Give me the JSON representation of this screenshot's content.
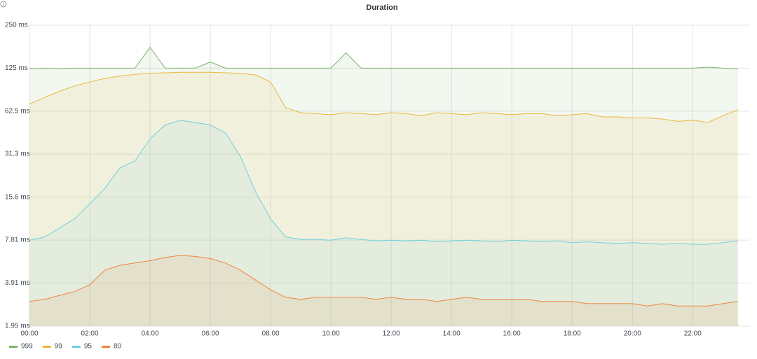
{
  "chart_data": {
    "type": "line",
    "title": "Duration",
    "log_base": 2,
    "grid": true,
    "fill_area": true,
    "legend_position": "bottom",
    "x": [
      0,
      0.5,
      1,
      1.5,
      2,
      2.5,
      3,
      3.5,
      4,
      4.5,
      5,
      5.5,
      6,
      6.5,
      7,
      7.5,
      8,
      8.5,
      9,
      9.5,
      10,
      10.5,
      11,
      11.5,
      12,
      12.5,
      13,
      13.5,
      14,
      14.5,
      15,
      15.5,
      16,
      16.5,
      17,
      17.5,
      18,
      18.5,
      19,
      19.5,
      20,
      20.5,
      21,
      21.5,
      22,
      22.5,
      23,
      23.5
    ],
    "xlim": [
      0,
      23.9
    ],
    "xticks": [
      {
        "value": 0,
        "label": "00:00"
      },
      {
        "value": 2,
        "label": "02:00"
      },
      {
        "value": 4,
        "label": "04:00"
      },
      {
        "value": 6,
        "label": "06:00"
      },
      {
        "value": 8,
        "label": "08:00"
      },
      {
        "value": 10,
        "label": "10:00"
      },
      {
        "value": 12,
        "label": "12:00"
      },
      {
        "value": 14,
        "label": "14:00"
      },
      {
        "value": 16,
        "label": "16:00"
      },
      {
        "value": 18,
        "label": "18:00"
      },
      {
        "value": 20,
        "label": "20:00"
      },
      {
        "value": 22,
        "label": "22:00"
      }
    ],
    "ylim": [
      1.95,
      250
    ],
    "yticks": [
      {
        "value": 1.95,
        "label": "1.95 ms"
      },
      {
        "value": 3.91,
        "label": "3.91 ms"
      },
      {
        "value": 7.81,
        "label": "7.81 ms"
      },
      {
        "value": 15.6,
        "label": "15.6 ms"
      },
      {
        "value": 31.3,
        "label": "31.3 ms"
      },
      {
        "value": 62.5,
        "label": "62.5 ms"
      },
      {
        "value": 125,
        "label": "125 ms"
      },
      {
        "value": 250,
        "label": "250 ms"
      }
    ],
    "series": [
      {
        "name": "999",
        "color": "#7eb26d",
        "values": [
          124,
          125,
          124,
          125,
          125,
          125,
          125,
          125,
          175,
          125,
          125,
          125,
          138,
          125,
          125,
          125,
          125,
          125,
          125,
          125,
          125,
          160,
          125,
          125,
          125,
          125,
          125,
          125,
          125,
          125,
          125,
          125,
          125,
          125,
          125,
          125,
          125,
          125,
          125,
          125,
          125,
          125,
          125,
          125,
          125,
          127,
          125,
          124
        ]
      },
      {
        "name": "99",
        "color": "#eab839",
        "values": [
          70,
          78,
          86,
          94,
          100,
          106,
          110,
          113,
          115,
          116,
          117,
          117,
          117,
          116,
          115,
          112,
          100,
          66,
          61,
          60,
          59,
          61,
          60,
          59,
          61,
          60,
          58,
          61,
          60,
          59,
          61,
          60,
          59,
          60,
          60,
          58,
          59,
          60,
          57,
          57,
          56,
          56,
          55,
          53,
          54,
          52,
          58,
          64
        ]
      },
      {
        "name": "95",
        "color": "#6ed0e0",
        "values": [
          7.8,
          8.2,
          9.5,
          11,
          14,
          18,
          25,
          28,
          40,
          50,
          54,
          52,
          50,
          44,
          30,
          17,
          11,
          8.2,
          7.9,
          7.9,
          7.8,
          8.1,
          7.9,
          7.7,
          7.8,
          7.7,
          7.8,
          7.6,
          7.7,
          7.8,
          7.7,
          7.6,
          7.8,
          7.7,
          7.6,
          7.7,
          7.5,
          7.6,
          7.5,
          7.4,
          7.5,
          7.4,
          7.3,
          7.4,
          7.3,
          7.3,
          7.5,
          7.7
        ]
      },
      {
        "name": "80",
        "color": "#ef843c",
        "values": [
          2.9,
          3.0,
          3.2,
          3.4,
          3.8,
          4.8,
          5.2,
          5.4,
          5.6,
          5.9,
          6.1,
          6.0,
          5.8,
          5.4,
          4.8,
          4.1,
          3.5,
          3.1,
          3.0,
          3.1,
          3.1,
          3.1,
          3.1,
          3.0,
          3.1,
          3.0,
          3.0,
          2.9,
          3.0,
          3.1,
          3.0,
          3.0,
          3.0,
          3.0,
          2.9,
          2.9,
          2.9,
          2.8,
          2.8,
          2.8,
          2.8,
          2.7,
          2.8,
          2.7,
          2.7,
          2.7,
          2.8,
          2.9
        ]
      }
    ]
  }
}
